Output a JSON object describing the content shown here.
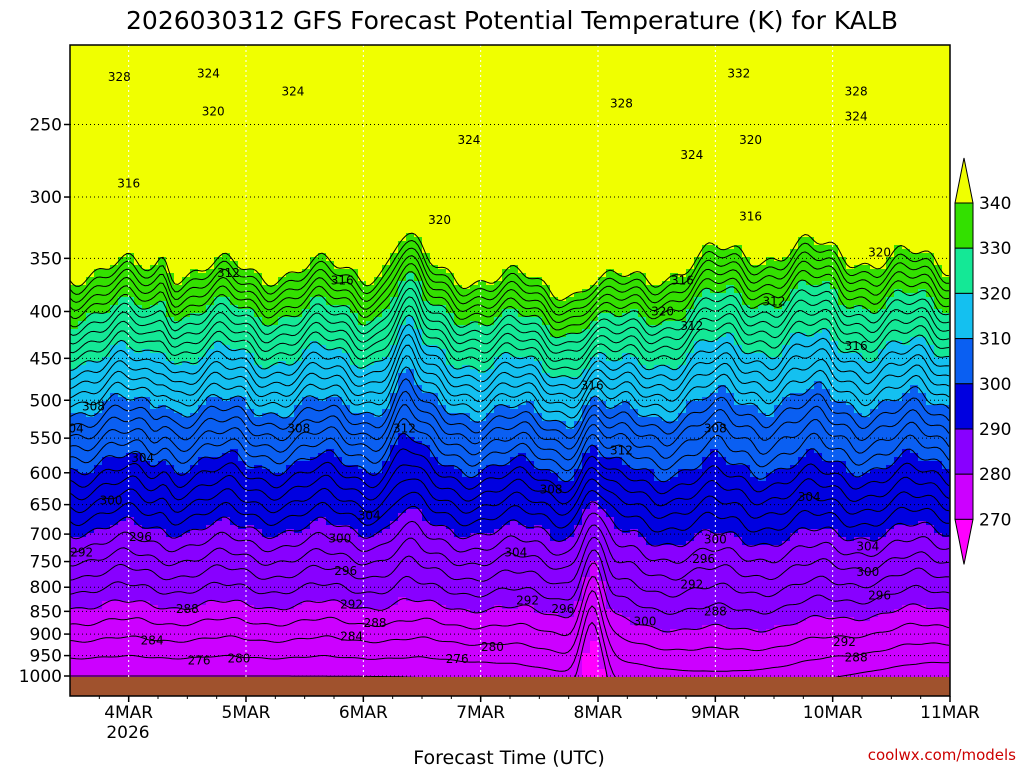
{
  "chart_data": {
    "type": "contour",
    "title": "2026030312 GFS Forecast Potential Temperature (K) for KALB",
    "xlabel": "Forecast Time (UTC)",
    "ylabel": "",
    "x_ticks": [
      "4MAR",
      "5MAR",
      "6MAR",
      "7MAR",
      "8MAR",
      "9MAR",
      "10MAR",
      "11MAR"
    ],
    "x_tick_sub": "2026",
    "x_range_days": [
      3.5,
      11.0
    ],
    "y_ticks": [
      250,
      300,
      350,
      400,
      450,
      500,
      550,
      600,
      650,
      700,
      750,
      800,
      850,
      900,
      950,
      1000
    ],
    "y_range_hPa": [
      200,
      1020
    ],
    "y_scale": "log-pressure",
    "colorbar": {
      "levels": [
        270,
        280,
        290,
        300,
        310,
        320,
        330,
        340
      ],
      "labels": [
        "340",
        "330",
        "320",
        "310",
        "300",
        "290",
        "280",
        "270"
      ],
      "colors": [
        "#ff00ff",
        "#cc00ff",
        "#8800ff",
        "#0000e0",
        "#0a5ff2",
        "#14c0f0",
        "#14e896",
        "#33e000",
        "#f0ff00"
      ],
      "extend": "both"
    },
    "contour_interval": 2,
    "contour_labels": [
      {
        "t": 3.92,
        "p": 222,
        "v": "328"
      },
      {
        "t": 4.68,
        "p": 220,
        "v": "324"
      },
      {
        "t": 5.4,
        "p": 230,
        "v": "324"
      },
      {
        "t": 4.72,
        "p": 242,
        "v": "320"
      },
      {
        "t": 4.0,
        "p": 290,
        "v": "316"
      },
      {
        "t": 4.85,
        "p": 363,
        "v": "312"
      },
      {
        "t": 5.82,
        "p": 370,
        "v": "316"
      },
      {
        "t": 6.65,
        "p": 318,
        "v": "320"
      },
      {
        "t": 6.9,
        "p": 260,
        "v": "324"
      },
      {
        "t": 8.2,
        "p": 237,
        "v": "328"
      },
      {
        "t": 9.2,
        "p": 220,
        "v": "332"
      },
      {
        "t": 10.2,
        "p": 230,
        "v": "328"
      },
      {
        "t": 10.2,
        "p": 245,
        "v": "324"
      },
      {
        "t": 9.3,
        "p": 260,
        "v": "320"
      },
      {
        "t": 8.8,
        "p": 270,
        "v": "324"
      },
      {
        "t": 9.3,
        "p": 315,
        "v": "316"
      },
      {
        "t": 10.4,
        "p": 345,
        "v": "320"
      },
      {
        "t": 8.72,
        "p": 370,
        "v": "316"
      },
      {
        "t": 8.55,
        "p": 400,
        "v": "320"
      },
      {
        "t": 8.8,
        "p": 415,
        "v": "312"
      },
      {
        "t": 9.5,
        "p": 390,
        "v": "312"
      },
      {
        "t": 10.2,
        "p": 436,
        "v": "316"
      },
      {
        "t": 7.95,
        "p": 482,
        "v": "316"
      },
      {
        "t": 6.35,
        "p": 537,
        "v": "312"
      },
      {
        "t": 5.45,
        "p": 537,
        "v": "308"
      },
      {
        "t": 3.7,
        "p": 508,
        "v": "308"
      },
      {
        "t": 3.52,
        "p": 537,
        "v": "304"
      },
      {
        "t": 4.12,
        "p": 578,
        "v": "304"
      },
      {
        "t": 3.85,
        "p": 643,
        "v": "300"
      },
      {
        "t": 3.6,
        "p": 733,
        "v": "292"
      },
      {
        "t": 4.1,
        "p": 705,
        "v": "296"
      },
      {
        "t": 6.05,
        "p": 668,
        "v": "304"
      },
      {
        "t": 7.6,
        "p": 626,
        "v": "308"
      },
      {
        "t": 8.2,
        "p": 567,
        "v": "312"
      },
      {
        "t": 9.0,
        "p": 537,
        "v": "308"
      },
      {
        "t": 9.8,
        "p": 638,
        "v": "304"
      },
      {
        "t": 9.0,
        "p": 710,
        "v": "300"
      },
      {
        "t": 8.9,
        "p": 745,
        "v": "296"
      },
      {
        "t": 8.8,
        "p": 795,
        "v": "292"
      },
      {
        "t": 5.8,
        "p": 708,
        "v": "300"
      },
      {
        "t": 5.85,
        "p": 768,
        "v": "296"
      },
      {
        "t": 7.3,
        "p": 733,
        "v": "304"
      },
      {
        "t": 7.4,
        "p": 827,
        "v": "292"
      },
      {
        "t": 7.7,
        "p": 845,
        "v": "296"
      },
      {
        "t": 8.4,
        "p": 872,
        "v": "300"
      },
      {
        "t": 10.3,
        "p": 722,
        "v": "304"
      },
      {
        "t": 10.3,
        "p": 770,
        "v": "300"
      },
      {
        "t": 10.4,
        "p": 817,
        "v": "296"
      },
      {
        "t": 5.9,
        "p": 835,
        "v": "292"
      },
      {
        "t": 4.5,
        "p": 845,
        "v": "288"
      },
      {
        "t": 6.1,
        "p": 875,
        "v": "288"
      },
      {
        "t": 5.9,
        "p": 905,
        "v": "284"
      },
      {
        "t": 4.2,
        "p": 915,
        "v": "284"
      },
      {
        "t": 4.6,
        "p": 962,
        "v": "276"
      },
      {
        "t": 4.94,
        "p": 957,
        "v": "280"
      },
      {
        "t": 6.8,
        "p": 958,
        "v": "276"
      },
      {
        "t": 7.1,
        "p": 930,
        "v": "280"
      },
      {
        "t": 9.0,
        "p": 850,
        "v": "288"
      },
      {
        "t": 10.1,
        "p": 918,
        "v": "292"
      },
      {
        "t": 10.2,
        "p": 955,
        "v": "288"
      }
    ]
  },
  "watermark": "coolwx.com/models"
}
